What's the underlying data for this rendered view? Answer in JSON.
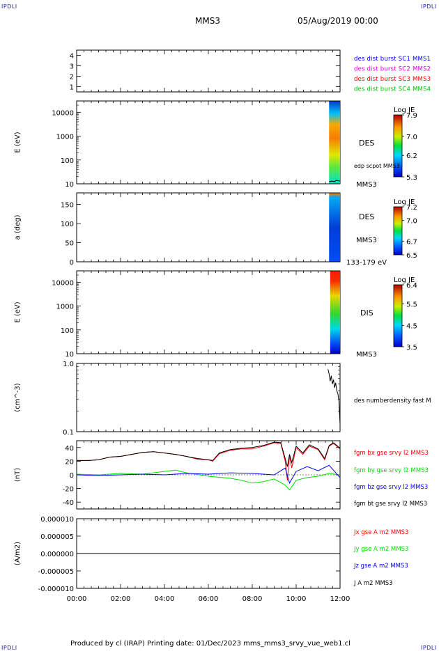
{
  "header": {
    "corner_left": "IPDLI",
    "corner_right": "IPDLI",
    "corner_bottom_left": "IPDLI",
    "corner_bottom_right": "IPDLI",
    "spacecraft": "MMS3",
    "date": "05/Aug/2019 00:00"
  },
  "footer": {
    "text": "Produced by cl (IRAP)   Printing date: 01/Dec/2023   mms_mms3_srvy_vue_web1.cl"
  },
  "time_axis": {
    "range_hours": [
      0,
      12
    ],
    "tick_labels": [
      "00:00",
      "02:00",
      "04:00",
      "06:00",
      "08:00",
      "10:00",
      "12:00"
    ]
  },
  "colors": {
    "sc1": "#0000ff",
    "sc2": "#e000e0",
    "sc3": "#ff0000",
    "sc4": "#00c000",
    "bx": "#ff0000",
    "by": "#00dd00",
    "bz": "#0000ff",
    "bt": "#000000"
  },
  "chart_data": [
    {
      "type": "line",
      "panel": "burst-availability",
      "ylim": [
        0.5,
        4.5
      ],
      "y_ticks": [
        "1",
        "2",
        "3",
        "4"
      ],
      "series": [
        {
          "name": "des dist burst SC1 MMS1",
          "color": "#0000ff"
        },
        {
          "name": "des dist burst SC2 MMS2",
          "color": "#e000e0"
        },
        {
          "name": "des dist burst SC3 MMS3",
          "color": "#ff0000"
        },
        {
          "name": "des dist burst SC4 MMS4",
          "color": "#00c000"
        }
      ]
    },
    {
      "type": "heatmap",
      "panel": "des-energy-spectrogram",
      "ylabel": "E (eV)",
      "scale": "log",
      "ylim": [
        10,
        30000
      ],
      "y_ticks": [
        "10",
        "100",
        "1000",
        "10000"
      ],
      "data_x_range": [
        11.5,
        12.0
      ],
      "label": "DES",
      "spacecraft_label": "MMS3",
      "overlay_label": "edp scpot MMS3",
      "colorbar": {
        "title": "Log JE",
        "ticks": [
          "7.9",
          "7.0",
          "6.2",
          "5.3"
        ],
        "range": [
          5.3,
          7.9
        ]
      }
    },
    {
      "type": "heatmap",
      "panel": "des-pitch-angle",
      "ylabel": "a (deg)",
      "ylim": [
        0,
        180
      ],
      "y_ticks": [
        "0",
        "50",
        "100",
        "150"
      ],
      "data_x_range": [
        11.5,
        12.0
      ],
      "label": "DES",
      "spacecraft_label": "MMS3",
      "energy_label": "133-179 eV",
      "colorbar": {
        "title": "Log JE",
        "ticks": [
          "7.2",
          "7.0",
          "6.7",
          "6.5"
        ],
        "range": [
          6.5,
          7.2
        ]
      }
    },
    {
      "type": "heatmap",
      "panel": "dis-energy-spectrogram",
      "ylabel": "E (eV)",
      "scale": "log",
      "ylim": [
        10,
        30000
      ],
      "y_ticks": [
        "10",
        "100",
        "1000",
        "10000"
      ],
      "data_x_range": [
        11.55,
        12.0
      ],
      "label": "DIS",
      "spacecraft_label": "MMS3",
      "colorbar": {
        "title": "Log JE",
        "ticks": [
          "6.4",
          "5.5",
          "4.5",
          "3.5"
        ],
        "range": [
          3.5,
          6.4
        ]
      }
    },
    {
      "type": "line",
      "panel": "density",
      "ylabel": "(cm^-3)",
      "scale": "log",
      "ylim": [
        0.1,
        1.0
      ],
      "y_ticks": [
        "1.0",
        "0.1"
      ],
      "series": [
        {
          "name": "des numberdensity fast M",
          "color": "#000000",
          "x": [
            11.45,
            11.5,
            11.55,
            11.6,
            11.65,
            11.7,
            11.75,
            11.8,
            11.85,
            11.9,
            11.95,
            12.0
          ],
          "y": [
            0.82,
            0.7,
            0.55,
            0.66,
            0.5,
            0.58,
            0.44,
            0.52,
            0.4,
            0.36,
            0.28,
            0.13
          ]
        }
      ]
    },
    {
      "type": "line",
      "panel": "magnetic-field",
      "ylabel": "(nT)",
      "ylim": [
        -50,
        50
      ],
      "y_ticks": [
        "40",
        "20",
        "0",
        "-20",
        "-40"
      ],
      "series": [
        {
          "name": "fgm bx gse srvy l2 MMS3",
          "color": "#ff0000",
          "x": [
            0,
            0.5,
            1,
            1.5,
            2,
            2.5,
            3,
            3.5,
            4,
            4.5,
            5,
            5.5,
            6,
            6.2,
            6.5,
            7,
            7.5,
            8,
            8.5,
            9,
            9.3,
            9.5,
            9.6,
            9.7,
            9.8,
            10,
            10.3,
            10.6,
            11,
            11.3,
            11.5,
            11.7,
            12
          ],
          "y": [
            21,
            21,
            22,
            26,
            27,
            30,
            33,
            34,
            32,
            30,
            27,
            23,
            22,
            20,
            31,
            36,
            38,
            38,
            42,
            47,
            46,
            20,
            -8,
            28,
            10,
            40,
            30,
            42,
            37,
            22,
            42,
            46,
            38
          ]
        },
        {
          "name": "fgm by gse srvy l2 MMS3",
          "color": "#00dd00",
          "x": [
            0,
            1,
            2,
            3,
            4,
            4.5,
            5,
            6,
            7,
            7.5,
            8,
            8.5,
            9,
            9.5,
            9.7,
            10,
            10.5,
            11,
            11.5,
            12
          ],
          "y": [
            1,
            0,
            2,
            1,
            5,
            7,
            3,
            -2,
            -5,
            -8,
            -12,
            -10,
            -6,
            -15,
            -22,
            -8,
            -4,
            -2,
            2,
            0
          ]
        },
        {
          "name": "fgm bz gse srvy l2 MMS3",
          "color": "#0000ff",
          "x": [
            0,
            1,
            2,
            3,
            4,
            5,
            6,
            7,
            8,
            9,
            9.5,
            9.7,
            10,
            10.5,
            11,
            11.5,
            12
          ],
          "y": [
            0,
            -1,
            0,
            1,
            0,
            2,
            1,
            3,
            2,
            0,
            10,
            -12,
            5,
            12,
            6,
            14,
            -4
          ]
        },
        {
          "name": "fgm bt gse srvy l2 MMS3",
          "color": "#000000",
          "x": [
            0,
            0.5,
            1,
            1.5,
            2,
            2.5,
            3,
            3.5,
            4,
            4.5,
            5,
            5.5,
            6,
            6.2,
            6.5,
            7,
            7.5,
            8,
            8.5,
            9,
            9.3,
            9.5,
            9.6,
            9.7,
            9.8,
            10,
            10.3,
            10.6,
            11,
            11.3,
            11.5,
            11.7,
            12
          ],
          "y": [
            21,
            21,
            22,
            26,
            27,
            30,
            33,
            34,
            32,
            30,
            27,
            24,
            22,
            21,
            32,
            37,
            39,
            40,
            43,
            48,
            47,
            24,
            12,
            30,
            18,
            42,
            32,
            44,
            38,
            24,
            43,
            47,
            39
          ]
        }
      ]
    },
    {
      "type": "line",
      "panel": "current-density",
      "ylabel": "(A/m2)",
      "ylim": [
        -1e-05,
        1e-05
      ],
      "y_ticks": [
        "0.000010",
        "0.000005",
        "0.000000",
        "-0.000005",
        "-0.000010"
      ],
      "series": [
        {
          "name": "Jx gse A m2 MMS3",
          "color": "#ff0000"
        },
        {
          "name": "Jy gse A m2 MMS3",
          "color": "#00dd00"
        },
        {
          "name": "Jz gse A m2 MMS3",
          "color": "#0000ff"
        },
        {
          "name": "J A m2 MMS3",
          "color": "#000000",
          "x": [
            0,
            12
          ],
          "y": [
            0,
            0
          ]
        }
      ]
    }
  ]
}
